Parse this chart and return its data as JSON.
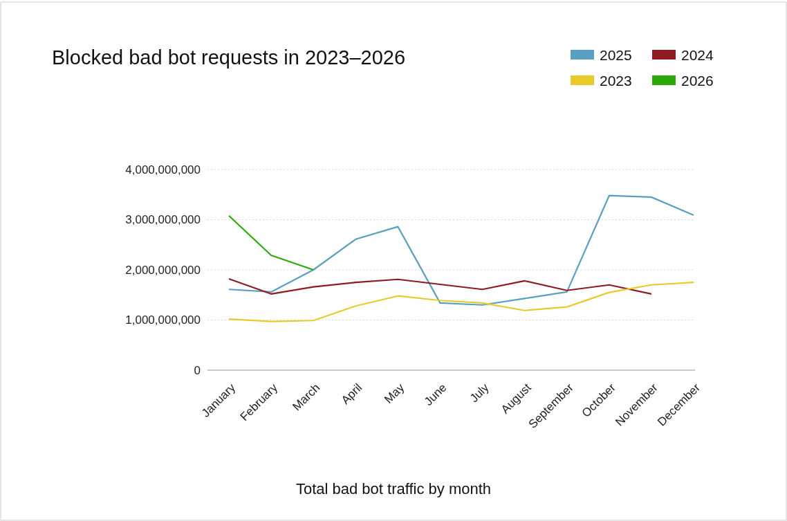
{
  "chart_data": {
    "type": "line",
    "title": "Blocked bad bot requests in 2023–2026",
    "xlabel": "Total bad bot traffic by month",
    "categories": [
      "January",
      "February",
      "March",
      "April",
      "May",
      "June",
      "July",
      "August",
      "September",
      "October",
      "November",
      "December"
    ],
    "series": [
      {
        "name": "2025",
        "color": "#5b9fc0",
        "values": [
          1610000000.0,
          1560000000.0,
          2000000000.0,
          2610000000.0,
          2860000000.0,
          1340000000.0,
          1300000000.0,
          1430000000.0,
          1560000000.0,
          3480000000.0,
          3450000000.0,
          3090000000.0
        ]
      },
      {
        "name": "2024",
        "color": "#8e1b24",
        "values": [
          1820000000.0,
          1520000000.0,
          1660000000.0,
          1750000000.0,
          1810000000.0,
          1710000000.0,
          1610000000.0,
          1780000000.0,
          1590000000.0,
          1700000000.0,
          1520000000.0,
          null
        ]
      },
      {
        "name": "2023",
        "color": "#e8cb2a",
        "values": [
          1020000000.0,
          970000000.0,
          990000000.0,
          1280000000.0,
          1480000000.0,
          1390000000.0,
          1340000000.0,
          1190000000.0,
          1260000000.0,
          1550000000.0,
          1700000000.0,
          1750000000.0
        ]
      },
      {
        "name": "2026",
        "color": "#2aaa0a",
        "values": [
          3080000000.0,
          2290000000.0,
          2000000000.0,
          null,
          null,
          null,
          null,
          null,
          null,
          null,
          null,
          null
        ]
      }
    ],
    "ylim": [
      0,
      4000000000
    ],
    "yticks": [
      {
        "value": 0,
        "label": "0"
      },
      {
        "value": 1000000000,
        "label": "1,000,000,000"
      },
      {
        "value": 2000000000,
        "label": "2,000,000,000"
      },
      {
        "value": 3000000000,
        "label": "3,000,000,000"
      },
      {
        "value": 4000000000,
        "label": "4,000,000,000"
      }
    ],
    "grid": "y",
    "legend": "top right",
    "marker": "none",
    "line_style": "solid"
  }
}
